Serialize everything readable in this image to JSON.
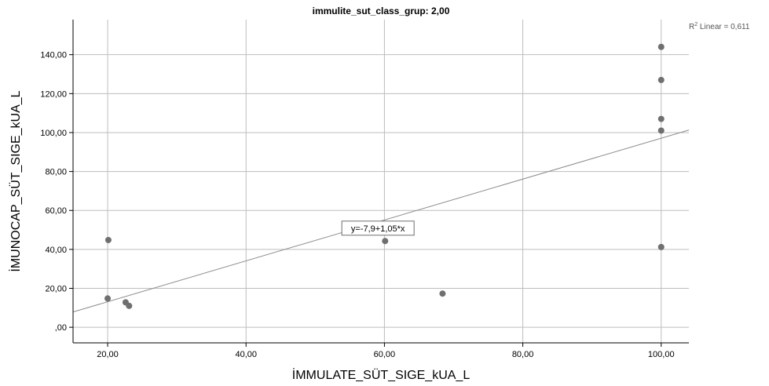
{
  "chart_data": {
    "type": "scatter",
    "title": "immulite_sut_class_grup: 2,00",
    "xlabel": "İMMULATE_SÜT_SIGE_kUA_L",
    "ylabel": "İMUNOCAP_SÜT_SIGE_kUA_L",
    "xlim": [
      15,
      104
    ],
    "ylim": [
      -8,
      158
    ],
    "x_ticks": [
      20,
      40,
      60,
      80,
      100
    ],
    "x_tick_labels": [
      "20,00",
      "40,00",
      "60,00",
      "80,00",
      "100,00"
    ],
    "y_ticks": [
      0,
      20,
      40,
      60,
      80,
      100,
      120,
      140
    ],
    "y_tick_labels": [
      ",00",
      "20,00",
      "40,00",
      "60,00",
      "80,00",
      "100,00",
      "120,00",
      "140,00"
    ],
    "grid": true,
    "series": [
      {
        "points": [
          {
            "x": 20.1,
            "y": 44.8
          },
          {
            "x": 20.0,
            "y": 14.8
          },
          {
            "x": 22.6,
            "y": 12.8
          },
          {
            "x": 23.1,
            "y": 11.0
          },
          {
            "x": 60.1,
            "y": 44.3
          },
          {
            "x": 68.4,
            "y": 17.3
          },
          {
            "x": 100.0,
            "y": 144.0
          },
          {
            "x": 100.0,
            "y": 127.0
          },
          {
            "x": 100.0,
            "y": 107.0
          },
          {
            "x": 100.0,
            "y": 101.0
          },
          {
            "x": 100.0,
            "y": 41.2
          }
        ]
      }
    ],
    "fit_line": {
      "intercept": -7.9,
      "slope": 1.05,
      "equation_label": "y=-7,9+1,05*x",
      "r2_prefix": "R",
      "r2_sup": "2",
      "r2_suffix": " Linear = 0,611"
    },
    "colors": {
      "points": "#6f6f6f",
      "fit_line": "#8c8c8c",
      "grid": "#bdbdbd"
    }
  }
}
